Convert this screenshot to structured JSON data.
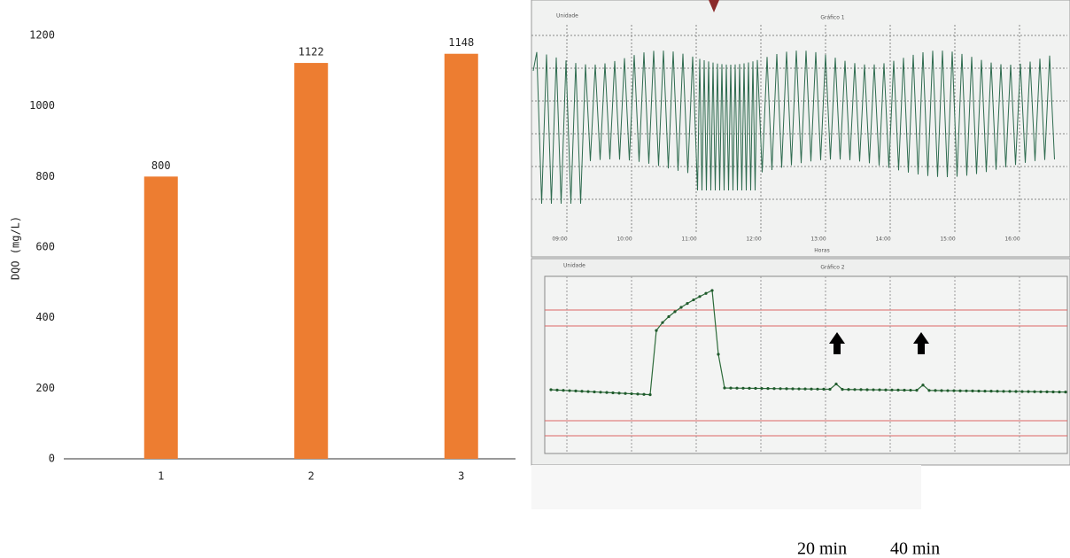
{
  "chart_data": {
    "type": "bar",
    "y_label": "DQO (mg/L)",
    "categories": [
      "1",
      "2",
      "3"
    ],
    "values": [
      800,
      1122,
      1148
    ],
    "color": "#ed7d31",
    "ylim": [
      0,
      1200
    ],
    "yticks": [
      0,
      200,
      400,
      600,
      800,
      1000,
      1200
    ]
  },
  "photo": {
    "top_panel": {
      "legend": "Unidade",
      "title": "Gráfico 1",
      "x_label": "Horas",
      "x_ticks": [
        "09:00",
        "10:00",
        "11:00",
        "12:00",
        "13:00",
        "14:00",
        "15:00",
        "16:00"
      ]
    },
    "bottom_panel": {
      "legend": "Unidade",
      "title": "Gráfico 2"
    },
    "captions": [
      "20 min",
      "40 min"
    ]
  }
}
